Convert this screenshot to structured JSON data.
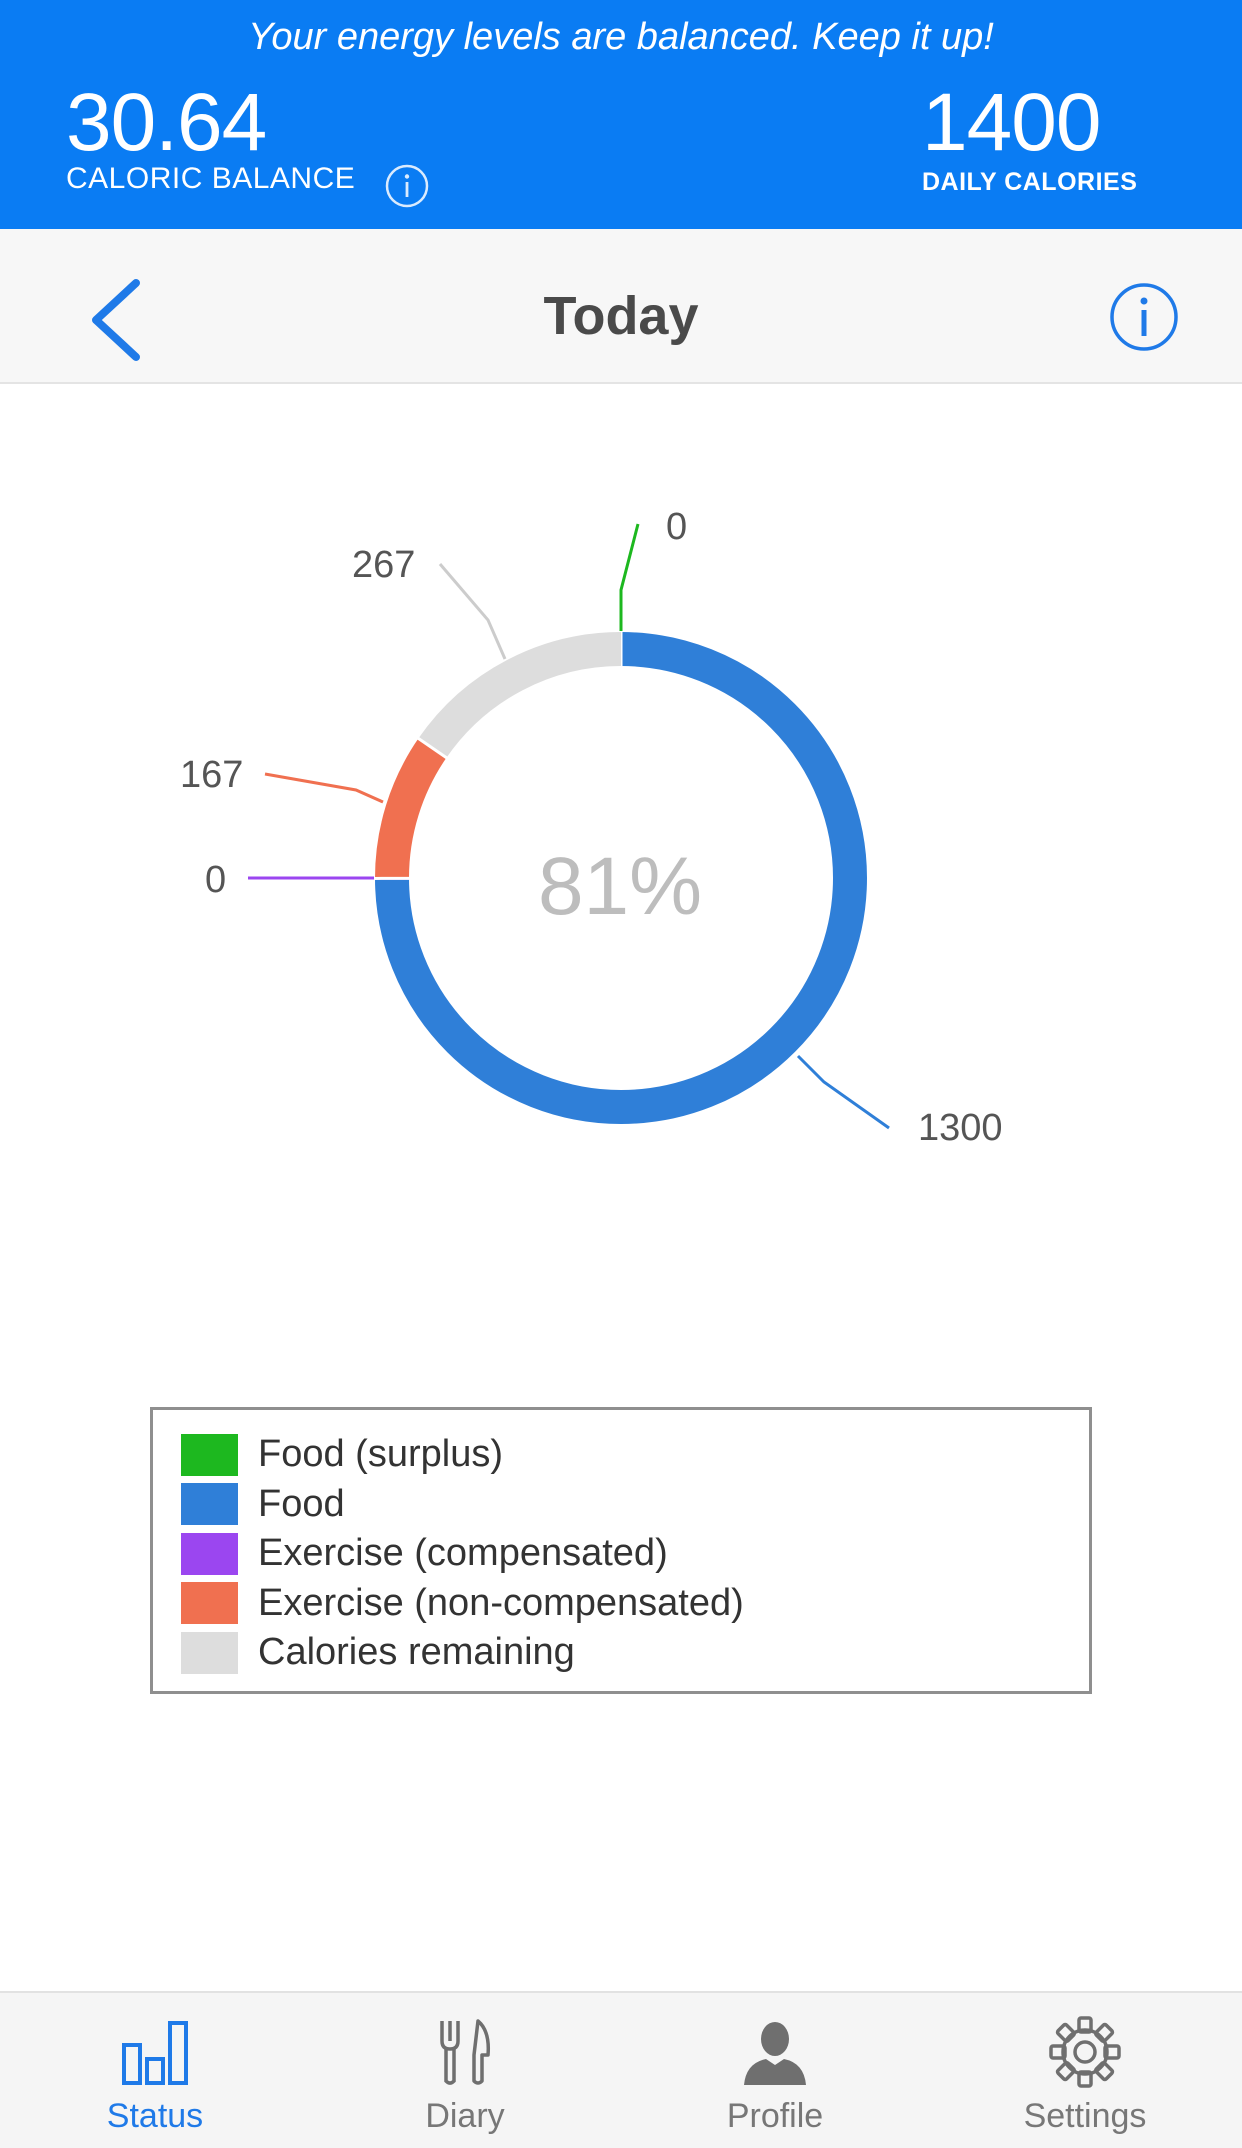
{
  "banner": {
    "message": "Your energy levels are balanced. Keep it up!",
    "caloric_balance_value": "30.64",
    "caloric_balance_label": "CALORIC BALANCE",
    "daily_calories_value": "1400",
    "daily_calories_label": "DAILY CALORIES"
  },
  "nav": {
    "title": "Today",
    "back_icon": "chevron-left-icon",
    "info_icon": "info-icon"
  },
  "chart_data": {
    "type": "pie",
    "variant": "donut",
    "center_text": "81%",
    "slices": [
      {
        "label": "Food (surplus)",
        "value": 0,
        "color": "#1db81f"
      },
      {
        "label": "Food",
        "value": 1300,
        "color": "#2f7fd8"
      },
      {
        "label": "Exercise (compensated)",
        "value": 0,
        "color": "#9b46f0"
      },
      {
        "label": "Exercise (non-compensated)",
        "value": 167,
        "color": "#f07050"
      },
      {
        "label": "Calories remaining",
        "value": 267,
        "color": "#dddddd"
      }
    ],
    "legend_placement": "bottom"
  },
  "tabs": [
    {
      "label": "Status",
      "icon": "bar-chart-icon",
      "active": true
    },
    {
      "label": "Diary",
      "icon": "fork-knife-icon",
      "active": false
    },
    {
      "label": "Profile",
      "icon": "person-icon",
      "active": false
    },
    {
      "label": "Settings",
      "icon": "gear-icon",
      "active": false
    }
  ],
  "colors": {
    "brand": "#0a7cf3",
    "accent": "#1f7ae8",
    "inactive": "#777777"
  }
}
